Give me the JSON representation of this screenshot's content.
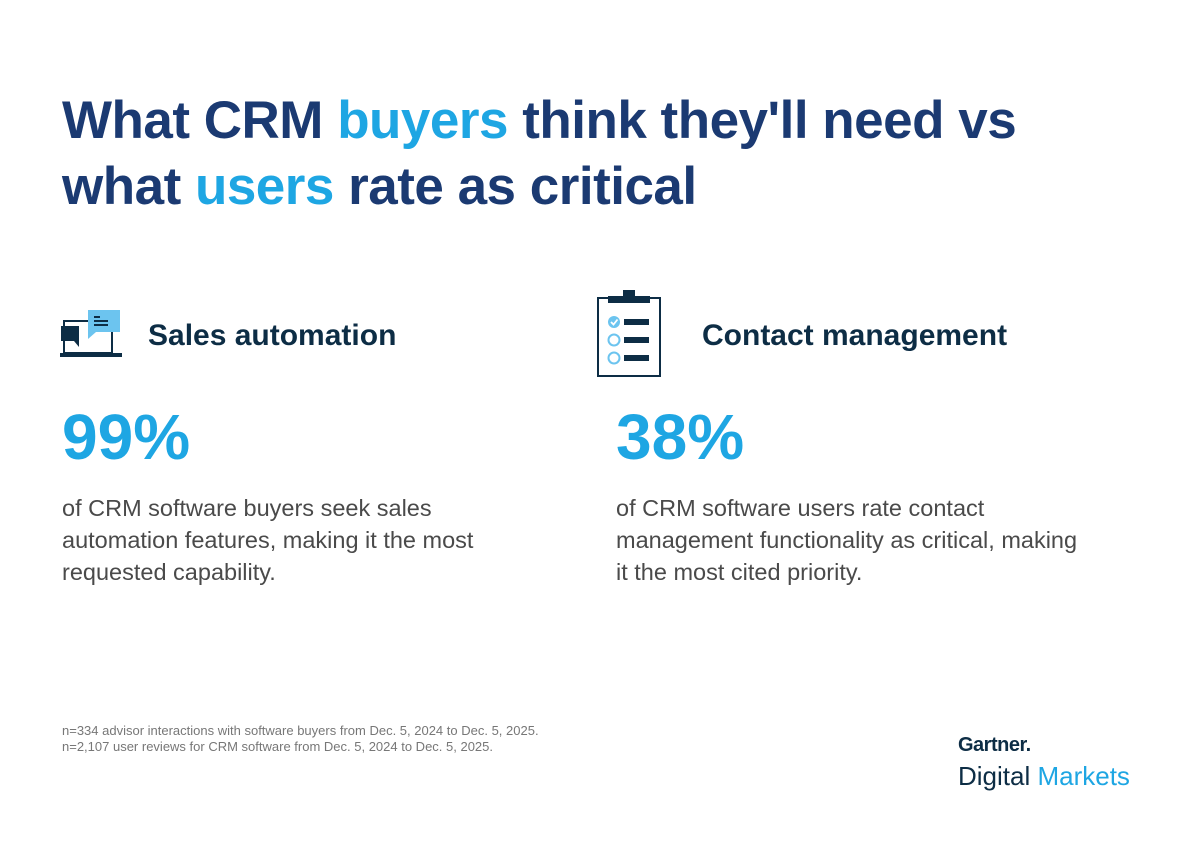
{
  "title": {
    "part1": "What CRM ",
    "highlight1": "buyers",
    "part2": " think they'll need vs what ",
    "highlight2": "users",
    "part3": " rate as critical"
  },
  "colors": {
    "title": "#1b3a72",
    "accent": "#1ea6e3",
    "heading": "#0d2d45",
    "body": "#4a4a4a"
  },
  "stats": [
    {
      "icon": "chat-monitor-icon",
      "heading": "Sales automation",
      "percent": "99%",
      "description": "of CRM software buyers seek sales automation features, making it the most requested capability."
    },
    {
      "icon": "clipboard-checklist-icon",
      "heading": "Contact management",
      "percent": "38%",
      "description": "of CRM software users rate contact management functionality as critical, making it the most cited priority."
    }
  ],
  "footnotes": [
    "n=334 advisor interactions with software buyers from Dec. 5, 2024 to Dec. 5, 2025.",
    "n=2,107 user reviews for CRM software from Dec. 5, 2024 to Dec. 5, 2025."
  ],
  "logo": {
    "brand": "Gartner.",
    "line2a": "Digital",
    "line2b": " Markets"
  }
}
